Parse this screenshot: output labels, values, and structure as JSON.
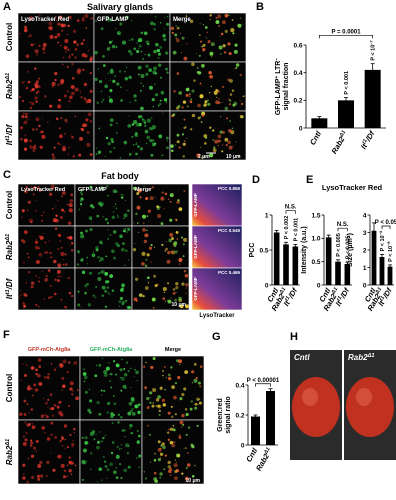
{
  "panels": {
    "letters": [
      "A",
      "B",
      "C",
      "D",
      "E",
      "F",
      "G",
      "H"
    ]
  },
  "A": {
    "title": "Salivary glands",
    "columns": [
      "LysoTracker Red",
      "GFP-LAMP",
      "Merge"
    ],
    "rows": [
      "Control",
      [
        "Rab2",
        "Δ1"
      ],
      [
        "lt",
        "t1",
        "/Df"
      ]
    ],
    "scale_bars": [
      "2 μm",
      "10 μm"
    ]
  },
  "C": {
    "title": "Fat body",
    "columns": [
      "LysoTracker Red",
      "GFP-LAMP",
      "Merge"
    ],
    "rows": [
      "Control",
      [
        "Rab2",
        "Δ1"
      ],
      [
        "lt",
        "t1",
        "/Df"
      ]
    ],
    "pcc_labels": [
      "PCC 0.858",
      "PCC 0.549",
      "PCC 0.465"
    ],
    "plot_ylabel": "GFP-LAMP",
    "plot_xlabel": "LysoTracker",
    "scale_bar": "10 μm"
  },
  "E": {
    "title": "LysoTracker Red"
  },
  "F": {
    "columns": [
      "GFP-mCh-Atg8a",
      "GFP-mCh-Atg8a",
      "Merge"
    ],
    "rows": [
      "Control",
      [
        "Rab2",
        "Δ1"
      ]
    ],
    "scale_bar": "10 μm"
  },
  "H": {
    "labels": [
      "Cntl",
      [
        "Rab2",
        "Δ1"
      ]
    ]
  },
  "chart_data": [
    {
      "type": "bar",
      "categories": [
        "Cntl",
        [
          "Rab2",
          "Δ1"
        ],
        [
          "lt",
          "t1",
          "/Df"
        ]
      ],
      "values": [
        0.07,
        0.2,
        0.42
      ],
      "errors": [
        0.012,
        0.02,
        0.045
      ],
      "color": "#000000",
      "ylim": [
        0,
        0.6
      ],
      "yticks": [
        0,
        0.2,
        0.4,
        0.6
      ],
      "ylabel": [
        [
          "GFP-LAMP",
          "+",
          " LTR",
          "−"
        ],
        "signal fraction"
      ],
      "p_labels": [
        null,
        "P < 0.001",
        [
          "P < 10",
          "−7"
        ]
      ],
      "bracket_label": "P = 0.0001"
    },
    {
      "type": "bar",
      "categories": [
        "Cntl",
        [
          "Rab2",
          "Δ1"
        ],
        [
          "lt",
          "t1",
          "/Df"
        ]
      ],
      "values": [
        0.75,
        0.58,
        0.55
      ],
      "errors": [
        0.03,
        0.03,
        0.03
      ],
      "color": "#000000",
      "ylim": [
        0,
        1
      ],
      "yticks": [
        0,
        0.5,
        1
      ],
      "ylabel": [
        "PCC"
      ],
      "p_labels": [
        null,
        "P < 0.002",
        "P < 0.001"
      ],
      "bracket_label": "N.S."
    },
    {
      "type": "bar",
      "categories": [
        "Cntl",
        [
          "Rab2",
          "Δ1"
        ],
        [
          "lt",
          "t1",
          "/Df"
        ]
      ],
      "values": [
        1.02,
        0.5,
        0.45
      ],
      "errors": [
        0.05,
        0.04,
        0.04
      ],
      "color": "#000000",
      "ylim": [
        0,
        1.5
      ],
      "yticks": [
        0,
        0.5,
        {
          "value": 1,
          "label": "1.0"
        },
        1.5
      ],
      "ylabel": [
        "Intensity (a.u.)"
      ],
      "p_labels": [
        null,
        "P < 0.005",
        "P < 0.005"
      ],
      "bracket_label": "N.S."
    },
    {
      "type": "bar",
      "categories": [
        "Cntl",
        [
          "Rab2",
          "Δ1"
        ],
        [
          "lt",
          "t1",
          "/Df"
        ]
      ],
      "values": [
        3.1,
        1.6,
        1.05
      ],
      "errors": [
        0.45,
        0.15,
        0.1
      ],
      "color": "#000000",
      "ylim": [
        0,
        4
      ],
      "yticks": [
        0,
        1,
        2,
        3,
        4
      ],
      "ylabel": [
        [
          "Size (μm",
          "2",
          ")"
        ]
      ],
      "p_labels": [
        null,
        [
          "P < 10",
          "−4"
        ],
        [
          "P < 10",
          "−8"
        ]
      ],
      "bracket_label": "P < 0.05"
    },
    {
      "type": "bar",
      "categories": [
        "Cntl",
        [
          "Rab2",
          "Δ1"
        ]
      ],
      "values": [
        0.19,
        0.36
      ],
      "errors": [
        0.01,
        0.015
      ],
      "color": "#000000",
      "ylim": [
        0,
        0.4
      ],
      "yticks": [
        0,
        0.2,
        0.4
      ],
      "ylabel": [
        "Green:red",
        "signal ratio"
      ],
      "p_labels": [
        null,
        null
      ],
      "bracket_label": "P < 0.00001"
    }
  ]
}
